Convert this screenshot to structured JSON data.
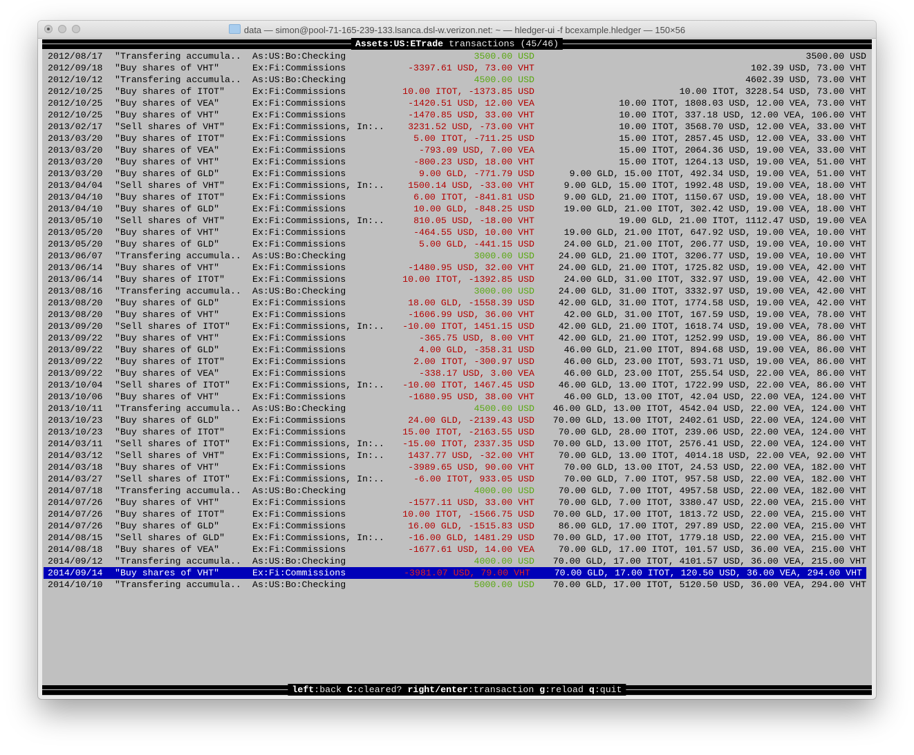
{
  "window": {
    "title": "data — simon@pool-71-165-239-133.lsanca.dsl-w.verizon.net: ~ — hledger-ui -f bcexample.hledger — 150×56"
  },
  "header": {
    "account": "Assets:US:ETrade",
    "label": " transactions (45/46)"
  },
  "colors": {
    "positive": "#5aa812",
    "negative": "#b30000",
    "selected_bg": "#0000b8",
    "background": "#c0c0c0"
  },
  "selected_index": 44,
  "rows": [
    {
      "date": "2012/08/17",
      "desc": "\"Transfering accumula..",
      "account": "As:US:Bo:Checking",
      "amount": "3500.00 USD",
      "balance": "3500.00 USD"
    },
    {
      "date": "2012/09/18",
      "desc": "\"Buy shares of VHT\"",
      "account": "Ex:Fi:Commissions",
      "amount": "-3397.61 USD, 73.00 VHT",
      "balance": "102.39 USD, 73.00 VHT"
    },
    {
      "date": "2012/10/12",
      "desc": "\"Transfering accumula..",
      "account": "As:US:Bo:Checking",
      "amount": "4500.00 USD",
      "balance": "4602.39 USD, 73.00 VHT"
    },
    {
      "date": "2012/10/25",
      "desc": "\"Buy shares of ITOT\"",
      "account": "Ex:Fi:Commissions",
      "amount": "10.00 ITOT, -1373.85 USD",
      "balance": "10.00 ITOT, 3228.54 USD, 73.00 VHT"
    },
    {
      "date": "2012/10/25",
      "desc": "\"Buy shares of VEA\"",
      "account": "Ex:Fi:Commissions",
      "amount": "-1420.51 USD, 12.00 VEA",
      "balance": "10.00 ITOT, 1808.03 USD, 12.00 VEA, 73.00 VHT"
    },
    {
      "date": "2012/10/25",
      "desc": "\"Buy shares of VHT\"",
      "account": "Ex:Fi:Commissions",
      "amount": "-1470.85 USD, 33.00 VHT",
      "balance": "10.00 ITOT, 337.18 USD, 12.00 VEA, 106.00 VHT"
    },
    {
      "date": "2013/02/17",
      "desc": "\"Sell shares of VHT\"",
      "account": "Ex:Fi:Commissions, In:..",
      "amount": "3231.52 USD, -73.00 VHT",
      "balance": "10.00 ITOT, 3568.70 USD, 12.00 VEA, 33.00 VHT"
    },
    {
      "date": "2013/03/20",
      "desc": "\"Buy shares of ITOT\"",
      "account": "Ex:Fi:Commissions",
      "amount": "5.00 ITOT, -711.25 USD",
      "balance": "15.00 ITOT, 2857.45 USD, 12.00 VEA, 33.00 VHT"
    },
    {
      "date": "2013/03/20",
      "desc": "\"Buy shares of VEA\"",
      "account": "Ex:Fi:Commissions",
      "amount": "-793.09 USD, 7.00 VEA",
      "balance": "15.00 ITOT, 2064.36 USD, 19.00 VEA, 33.00 VHT"
    },
    {
      "date": "2013/03/20",
      "desc": "\"Buy shares of VHT\"",
      "account": "Ex:Fi:Commissions",
      "amount": "-800.23 USD, 18.00 VHT",
      "balance": "15.00 ITOT, 1264.13 USD, 19.00 VEA, 51.00 VHT"
    },
    {
      "date": "2013/03/20",
      "desc": "\"Buy shares of GLD\"",
      "account": "Ex:Fi:Commissions",
      "amount": "9.00 GLD, -771.79 USD",
      "balance": "9.00 GLD, 15.00 ITOT, 492.34 USD, 19.00 VEA, 51.00 VHT"
    },
    {
      "date": "2013/04/04",
      "desc": "\"Sell shares of VHT\"",
      "account": "Ex:Fi:Commissions, In:..",
      "amount": "1500.14 USD, -33.00 VHT",
      "balance": "9.00 GLD, 15.00 ITOT, 1992.48 USD, 19.00 VEA, 18.00 VHT"
    },
    {
      "date": "2013/04/10",
      "desc": "\"Buy shares of ITOT\"",
      "account": "Ex:Fi:Commissions",
      "amount": "6.00 ITOT, -841.81 USD",
      "balance": "9.00 GLD, 21.00 ITOT, 1150.67 USD, 19.00 VEA, 18.00 VHT"
    },
    {
      "date": "2013/04/10",
      "desc": "\"Buy shares of GLD\"",
      "account": "Ex:Fi:Commissions",
      "amount": "10.00 GLD, -848.25 USD",
      "balance": "19.00 GLD, 21.00 ITOT, 302.42 USD, 19.00 VEA, 18.00 VHT"
    },
    {
      "date": "2013/05/10",
      "desc": "\"Sell shares of VHT\"",
      "account": "Ex:Fi:Commissions, In:..",
      "amount": "810.05 USD, -18.00 VHT",
      "balance": "19.00 GLD, 21.00 ITOT, 1112.47 USD, 19.00 VEA"
    },
    {
      "date": "2013/05/20",
      "desc": "\"Buy shares of VHT\"",
      "account": "Ex:Fi:Commissions",
      "amount": "-464.55 USD, 10.00 VHT",
      "balance": "19.00 GLD, 21.00 ITOT, 647.92 USD, 19.00 VEA, 10.00 VHT"
    },
    {
      "date": "2013/05/20",
      "desc": "\"Buy shares of GLD\"",
      "account": "Ex:Fi:Commissions",
      "amount": "5.00 GLD, -441.15 USD",
      "balance": "24.00 GLD, 21.00 ITOT, 206.77 USD, 19.00 VEA, 10.00 VHT"
    },
    {
      "date": "2013/06/07",
      "desc": "\"Transfering accumula..",
      "account": "As:US:Bo:Checking",
      "amount": "3000.00 USD",
      "balance": "24.00 GLD, 21.00 ITOT, 3206.77 USD, 19.00 VEA, 10.00 VHT"
    },
    {
      "date": "2013/06/14",
      "desc": "\"Buy shares of VHT\"",
      "account": "Ex:Fi:Commissions",
      "amount": "-1480.95 USD, 32.00 VHT",
      "balance": "24.00 GLD, 21.00 ITOT, 1725.82 USD, 19.00 VEA, 42.00 VHT"
    },
    {
      "date": "2013/06/14",
      "desc": "\"Buy shares of ITOT\"",
      "account": "Ex:Fi:Commissions",
      "amount": "10.00 ITOT, -1392.85 USD",
      "balance": "24.00 GLD, 31.00 ITOT, 332.97 USD, 19.00 VEA, 42.00 VHT"
    },
    {
      "date": "2013/08/16",
      "desc": "\"Transfering accumula..",
      "account": "As:US:Bo:Checking",
      "amount": "3000.00 USD",
      "balance": "24.00 GLD, 31.00 ITOT, 3332.97 USD, 19.00 VEA, 42.00 VHT"
    },
    {
      "date": "2013/08/20",
      "desc": "\"Buy shares of GLD\"",
      "account": "Ex:Fi:Commissions",
      "amount": "18.00 GLD, -1558.39 USD",
      "balance": "42.00 GLD, 31.00 ITOT, 1774.58 USD, 19.00 VEA, 42.00 VHT"
    },
    {
      "date": "2013/08/20",
      "desc": "\"Buy shares of VHT\"",
      "account": "Ex:Fi:Commissions",
      "amount": "-1606.99 USD, 36.00 VHT",
      "balance": "42.00 GLD, 31.00 ITOT, 167.59 USD, 19.00 VEA, 78.00 VHT"
    },
    {
      "date": "2013/09/20",
      "desc": "\"Sell shares of ITOT\"",
      "account": "Ex:Fi:Commissions, In:..",
      "amount": "-10.00 ITOT, 1451.15 USD",
      "balance": "42.00 GLD, 21.00 ITOT, 1618.74 USD, 19.00 VEA, 78.00 VHT"
    },
    {
      "date": "2013/09/22",
      "desc": "\"Buy shares of VHT\"",
      "account": "Ex:Fi:Commissions",
      "amount": "-365.75 USD, 8.00 VHT",
      "balance": "42.00 GLD, 21.00 ITOT, 1252.99 USD, 19.00 VEA, 86.00 VHT"
    },
    {
      "date": "2013/09/22",
      "desc": "\"Buy shares of GLD\"",
      "account": "Ex:Fi:Commissions",
      "amount": "4.00 GLD, -358.31 USD",
      "balance": "46.00 GLD, 21.00 ITOT, 894.68 USD, 19.00 VEA, 86.00 VHT"
    },
    {
      "date": "2013/09/22",
      "desc": "\"Buy shares of ITOT\"",
      "account": "Ex:Fi:Commissions",
      "amount": "2.00 ITOT, -300.97 USD",
      "balance": "46.00 GLD, 23.00 ITOT, 593.71 USD, 19.00 VEA, 86.00 VHT"
    },
    {
      "date": "2013/09/22",
      "desc": "\"Buy shares of VEA\"",
      "account": "Ex:Fi:Commissions",
      "amount": "-338.17 USD, 3.00 VEA",
      "balance": "46.00 GLD, 23.00 ITOT, 255.54 USD, 22.00 VEA, 86.00 VHT"
    },
    {
      "date": "2013/10/04",
      "desc": "\"Sell shares of ITOT\"",
      "account": "Ex:Fi:Commissions, In:..",
      "amount": "-10.00 ITOT, 1467.45 USD",
      "balance": "46.00 GLD, 13.00 ITOT, 1722.99 USD, 22.00 VEA, 86.00 VHT"
    },
    {
      "date": "2013/10/06",
      "desc": "\"Buy shares of VHT\"",
      "account": "Ex:Fi:Commissions",
      "amount": "-1680.95 USD, 38.00 VHT",
      "balance": "46.00 GLD, 13.00 ITOT, 42.04 USD, 22.00 VEA, 124.00 VHT"
    },
    {
      "date": "2013/10/11",
      "desc": "\"Transfering accumula..",
      "account": "As:US:Bo:Checking",
      "amount": "4500.00 USD",
      "balance": "46.00 GLD, 13.00 ITOT, 4542.04 USD, 22.00 VEA, 124.00 VHT"
    },
    {
      "date": "2013/10/23",
      "desc": "\"Buy shares of GLD\"",
      "account": "Ex:Fi:Commissions",
      "amount": "24.00 GLD, -2139.43 USD",
      "balance": "70.00 GLD, 13.00 ITOT, 2402.61 USD, 22.00 VEA, 124.00 VHT"
    },
    {
      "date": "2013/10/23",
      "desc": "\"Buy shares of ITOT\"",
      "account": "Ex:Fi:Commissions",
      "amount": "15.00 ITOT, -2163.55 USD",
      "balance": "70.00 GLD, 28.00 ITOT, 239.06 USD, 22.00 VEA, 124.00 VHT"
    },
    {
      "date": "2014/03/11",
      "desc": "\"Sell shares of ITOT\"",
      "account": "Ex:Fi:Commissions, In:..",
      "amount": "-15.00 ITOT, 2337.35 USD",
      "balance": "70.00 GLD, 13.00 ITOT, 2576.41 USD, 22.00 VEA, 124.00 VHT"
    },
    {
      "date": "2014/03/12",
      "desc": "\"Sell shares of VHT\"",
      "account": "Ex:Fi:Commissions, In:..",
      "amount": "1437.77 USD, -32.00 VHT",
      "balance": "70.00 GLD, 13.00 ITOT, 4014.18 USD, 22.00 VEA, 92.00 VHT"
    },
    {
      "date": "2014/03/18",
      "desc": "\"Buy shares of VHT\"",
      "account": "Ex:Fi:Commissions",
      "amount": "-3989.65 USD, 90.00 VHT",
      "balance": "70.00 GLD, 13.00 ITOT, 24.53 USD, 22.00 VEA, 182.00 VHT"
    },
    {
      "date": "2014/03/27",
      "desc": "\"Sell shares of ITOT\"",
      "account": "Ex:Fi:Commissions, In:..",
      "amount": "-6.00 ITOT, 933.05 USD",
      "balance": "70.00 GLD, 7.00 ITOT, 957.58 USD, 22.00 VEA, 182.00 VHT"
    },
    {
      "date": "2014/07/18",
      "desc": "\"Transfering accumula..",
      "account": "As:US:Bo:Checking",
      "amount": "4000.00 USD",
      "balance": "70.00 GLD, 7.00 ITOT, 4957.58 USD, 22.00 VEA, 182.00 VHT"
    },
    {
      "date": "2014/07/26",
      "desc": "\"Buy shares of VHT\"",
      "account": "Ex:Fi:Commissions",
      "amount": "-1577.11 USD, 33.00 VHT",
      "balance": "70.00 GLD, 7.00 ITOT, 3380.47 USD, 22.00 VEA, 215.00 VHT"
    },
    {
      "date": "2014/07/26",
      "desc": "\"Buy shares of ITOT\"",
      "account": "Ex:Fi:Commissions",
      "amount": "10.00 ITOT, -1566.75 USD",
      "balance": "70.00 GLD, 17.00 ITOT, 1813.72 USD, 22.00 VEA, 215.00 VHT"
    },
    {
      "date": "2014/07/26",
      "desc": "\"Buy shares of GLD\"",
      "account": "Ex:Fi:Commissions",
      "amount": "16.00 GLD, -1515.83 USD",
      "balance": "86.00 GLD, 17.00 ITOT, 297.89 USD, 22.00 VEA, 215.00 VHT"
    },
    {
      "date": "2014/08/15",
      "desc": "\"Sell shares of GLD\"",
      "account": "Ex:Fi:Commissions, In:..",
      "amount": "-16.00 GLD, 1481.29 USD",
      "balance": "70.00 GLD, 17.00 ITOT, 1779.18 USD, 22.00 VEA, 215.00 VHT"
    },
    {
      "date": "2014/08/18",
      "desc": "\"Buy shares of VEA\"",
      "account": "Ex:Fi:Commissions",
      "amount": "-1677.61 USD, 14.00 VEA",
      "balance": "70.00 GLD, 17.00 ITOT, 101.57 USD, 36.00 VEA, 215.00 VHT"
    },
    {
      "date": "2014/09/12",
      "desc": "\"Transfering accumula..",
      "account": "As:US:Bo:Checking",
      "amount": "4000.00 USD",
      "balance": "70.00 GLD, 17.00 ITOT, 4101.57 USD, 36.00 VEA, 215.00 VHT"
    },
    {
      "date": "2014/09/14",
      "desc": "\"Buy shares of VHT\"",
      "account": "Ex:Fi:Commissions",
      "amount": "-3981.07 USD, 79.00 VHT",
      "balance": "70.00 GLD, 17.00 ITOT, 120.50 USD, 36.00 VEA, 294.00 VHT"
    },
    {
      "date": "2014/10/10",
      "desc": "\"Transfering accumula..",
      "account": "As:US:Bo:Checking",
      "amount": "5000.00 USD",
      "balance": "70.00 GLD, 17.00 ITOT, 5120.50 USD, 36.00 VEA, 294.00 VHT"
    }
  ],
  "footer": {
    "keys": [
      {
        "key": "left",
        "action": "back"
      },
      {
        "key": "C",
        "action": "cleared?"
      },
      {
        "key": "right/enter",
        "action": "transaction"
      },
      {
        "key": "g",
        "action": "reload"
      },
      {
        "key": "q",
        "action": "quit"
      }
    ]
  }
}
